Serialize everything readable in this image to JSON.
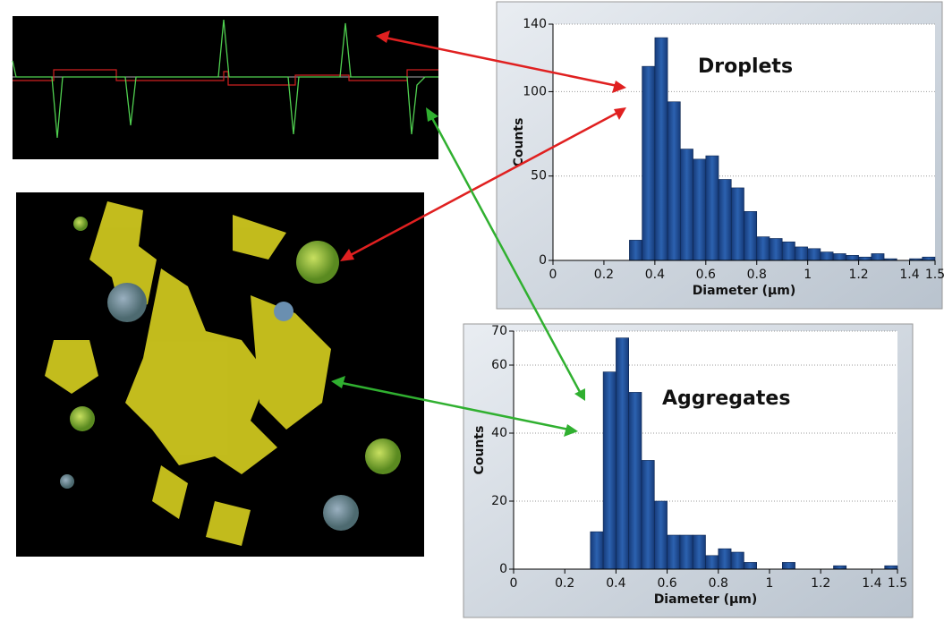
{
  "chart_data": [
    {
      "type": "histogram",
      "annotation": "Droplets",
      "xlabel": "Diameter (µm)",
      "ylabel": "Counts",
      "bins": [
        0.3,
        0.35,
        0.4,
        0.45,
        0.5,
        0.55,
        0.6,
        0.65,
        0.7,
        0.75,
        0.8,
        0.85,
        0.9,
        0.95,
        1,
        1.05,
        1.1,
        1.15,
        1.2,
        1.25,
        1.3,
        1.35,
        1.4,
        1.45,
        1.5
      ],
      "values": [
        12,
        115,
        132,
        94,
        66,
        60,
        62,
        48,
        43,
        29,
        14,
        13,
        11,
        8,
        7,
        5,
        4,
        3,
        2,
        4,
        1,
        0,
        1,
        2
      ],
      "color": "#1f4e96",
      "xlim": [
        0,
        1.5
      ],
      "ylim": [
        0,
        140
      ],
      "xticks": [
        0,
        0.2,
        0.4,
        0.6,
        0.8,
        1,
        1.2,
        1.4,
        1.5
      ],
      "yticks": [
        0,
        50,
        100,
        140
      ],
      "grid": true
    },
    {
      "type": "histogram",
      "annotation": "Aggregates",
      "xlabel": "Diameter (µm)",
      "ylabel": "Counts",
      "bins": [
        0.3,
        0.35,
        0.4,
        0.45,
        0.5,
        0.55,
        0.6,
        0.65,
        0.7,
        0.75,
        0.8,
        0.85,
        0.9,
        0.95,
        1,
        1.05,
        1.1,
        1.15,
        1.2,
        1.25,
        1.3,
        1.35,
        1.4,
        1.45,
        1.5
      ],
      "values": [
        11,
        58,
        68,
        52,
        32,
        20,
        10,
        10,
        10,
        4,
        6,
        5,
        2,
        0,
        0,
        2,
        0,
        0,
        0,
        1,
        0,
        0,
        0,
        1
      ],
      "color": "#1f4e96",
      "xlim": [
        0,
        1.5
      ],
      "ylim": [
        0,
        70
      ],
      "xticks": [
        0,
        0.2,
        0.4,
        0.6,
        0.8,
        1,
        1.2,
        1.4,
        1.5
      ],
      "yticks": [
        0,
        20,
        40,
        60,
        70
      ],
      "grid": true
    }
  ]
}
